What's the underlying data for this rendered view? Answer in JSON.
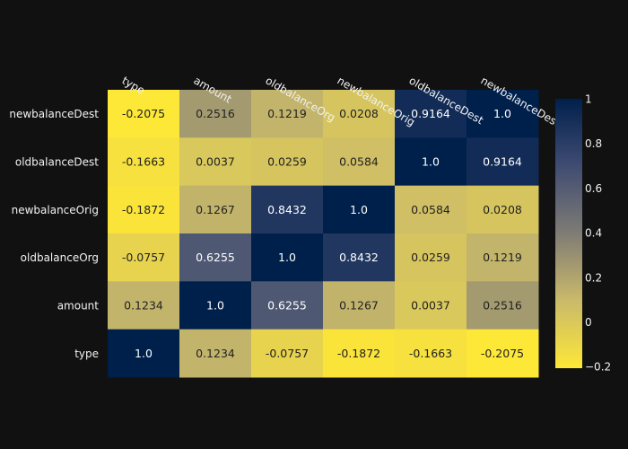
{
  "chart_data": {
    "type": "heatmap",
    "title": "",
    "xlabel": "",
    "ylabel": "",
    "x_categories": [
      "type",
      "amount",
      "oldbalanceOrg",
      "newbalanceOrig",
      "oldbalanceDest",
      "newbalanceDest"
    ],
    "y_categories_top_to_bottom": [
      "newbalanceDest",
      "oldbalanceDest",
      "newbalanceOrig",
      "oldbalanceOrg",
      "amount",
      "type"
    ],
    "z": [
      [
        -0.2075,
        0.2516,
        0.1219,
        0.0208,
        0.9164,
        1.0
      ],
      [
        -0.1663,
        0.0037,
        0.0259,
        0.0584,
        1.0,
        0.9164
      ],
      [
        -0.1872,
        0.1267,
        0.8432,
        1.0,
        0.0584,
        0.0208
      ],
      [
        -0.0757,
        0.6255,
        1.0,
        0.8432,
        0.0259,
        0.1219
      ],
      [
        0.1234,
        1.0,
        0.6255,
        0.1267,
        0.0037,
        0.2516
      ],
      [
        1.0,
        0.1234,
        -0.0757,
        -0.1872,
        -0.1663,
        -0.2075
      ]
    ],
    "z_labels": [
      [
        "-0.2075",
        "0.2516",
        "0.1219",
        "0.0208",
        "0.9164",
        "1.0"
      ],
      [
        "-0.1663",
        "0.0037",
        "0.0259",
        "0.0584",
        "1.0",
        "0.9164"
      ],
      [
        "-0.1872",
        "0.1267",
        "0.8432",
        "1.0",
        "0.0584",
        "0.0208"
      ],
      [
        "-0.0757",
        "0.6255",
        "1.0",
        "0.8432",
        "0.0259",
        "0.1219"
      ],
      [
        "0.1234",
        "1.0",
        "0.6255",
        "0.1267",
        "0.0037",
        "0.2516"
      ],
      [
        "1.0",
        "0.1234",
        "-0.0757",
        "-0.1872",
        "-0.1663",
        "-0.2075"
      ]
    ],
    "zmin": -0.2075,
    "zmax": 1.0,
    "colorscale": "cividis_r",
    "colorbar": {
      "ticks": [
        1,
        0.8,
        0.6,
        0.4,
        0.2,
        0,
        -0.2
      ],
      "tick_labels": [
        "1",
        "0.8",
        "0.6",
        "0.4",
        "0.2",
        "0",
        "−0.2"
      ]
    },
    "x_tick_position": "top",
    "grid": false
  },
  "colors": {
    "background": "#111111",
    "low": "#fde737",
    "mid": "#7f7c75",
    "high": "#00204c"
  }
}
